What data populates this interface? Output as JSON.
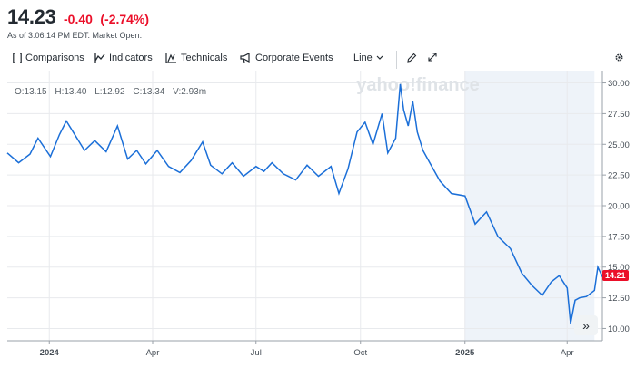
{
  "quote": {
    "price": "14.23",
    "change": "-0.40",
    "change_pct": "(-2.74%)",
    "as_of": "As of 3:06:14 PM EDT. Market Open.",
    "color_down": "#eb0f29"
  },
  "toolbar": {
    "comparisons": "Comparisons",
    "indicators": "Indicators",
    "technicals": "Technicals",
    "corporate_events": "Corporate Events",
    "chart_type": "Line"
  },
  "ohlc": {
    "open": "O:13.15",
    "high": "H:13.40",
    "low": "L:12.92",
    "close": "C:13.34",
    "volume": "V:2.93m"
  },
  "watermark": "yahoo!finance",
  "current_price_tag": "14.21",
  "expand_label": "»",
  "chart_data": {
    "type": "line",
    "y_ticks": [
      "10.00",
      "12.50",
      "15.00",
      "17.50",
      "20.00",
      "22.50",
      "25.00",
      "27.50",
      "30.00"
    ],
    "ylim": [
      9.0,
      31.0
    ],
    "x_ticks": [
      {
        "label": "2024",
        "date": "2024-01-01",
        "bold": true
      },
      {
        "label": "Apr",
        "date": "2024-04-01",
        "bold": false
      },
      {
        "label": "Jul",
        "date": "2024-07-01",
        "bold": false
      },
      {
        "label": "Oct",
        "date": "2024-10-01",
        "bold": false
      },
      {
        "label": "2025",
        "date": "2025-01-01",
        "bold": true
      },
      {
        "label": "Apr",
        "date": "2025-04-01",
        "bold": false
      }
    ],
    "xlim": [
      "2023-11-25",
      "2025-05-02"
    ],
    "shaded_range": [
      "2025-01-01",
      "2025-04-25"
    ],
    "line_color": "#1b6fd8",
    "series": [
      {
        "x": [
          "2023-11-25",
          "2023-12-05",
          "2023-12-15",
          "2023-12-22",
          "2024-01-02",
          "2024-01-10",
          "2024-01-16",
          "2024-01-22",
          "2024-02-01",
          "2024-02-10",
          "2024-02-20",
          "2024-03-01",
          "2024-03-10",
          "2024-03-18",
          "2024-03-26",
          "2024-04-05",
          "2024-04-15",
          "2024-04-25",
          "2024-05-05",
          "2024-05-15",
          "2024-05-22",
          "2024-06-01",
          "2024-06-10",
          "2024-06-20",
          "2024-07-01",
          "2024-07-08",
          "2024-07-15",
          "2024-07-25",
          "2024-08-05",
          "2024-08-15",
          "2024-08-25",
          "2024-09-05",
          "2024-09-12",
          "2024-09-20",
          "2024-09-28",
          "2024-10-05",
          "2024-10-12",
          "2024-10-20",
          "2024-10-25",
          "2024-11-01",
          "2024-11-05",
          "2024-11-08",
          "2024-11-12",
          "2024-11-16",
          "2024-11-20",
          "2024-11-25",
          "2024-12-01",
          "2024-12-10",
          "2024-12-20",
          "2025-01-01",
          "2025-01-10",
          "2025-01-20",
          "2025-01-30",
          "2025-02-10",
          "2025-02-20",
          "2025-03-01",
          "2025-03-10",
          "2025-03-18",
          "2025-03-25",
          "2025-04-01",
          "2025-04-04",
          "2025-04-08",
          "2025-04-12",
          "2025-04-18",
          "2025-04-25",
          "2025-04-28",
          "2025-05-02"
        ],
        "values": [
          24.3,
          23.5,
          24.2,
          25.5,
          24.0,
          25.8,
          26.9,
          26.0,
          24.5,
          25.3,
          24.4,
          26.5,
          23.8,
          24.5,
          23.4,
          24.5,
          23.2,
          22.7,
          23.7,
          25.2,
          23.3,
          22.6,
          23.5,
          22.4,
          23.2,
          22.8,
          23.5,
          22.6,
          22.1,
          23.3,
          22.4,
          23.2,
          21.0,
          23.0,
          26.0,
          26.8,
          25.0,
          27.5,
          24.3,
          25.5,
          29.9,
          27.8,
          26.5,
          28.5,
          26.0,
          24.5,
          23.5,
          22.0,
          21.0,
          20.8,
          18.5,
          19.5,
          17.5,
          16.5,
          14.5,
          13.5,
          12.7,
          13.8,
          14.3,
          13.3,
          10.4,
          12.3,
          12.5,
          12.6,
          13.1,
          15.0,
          14.21
        ]
      }
    ]
  }
}
